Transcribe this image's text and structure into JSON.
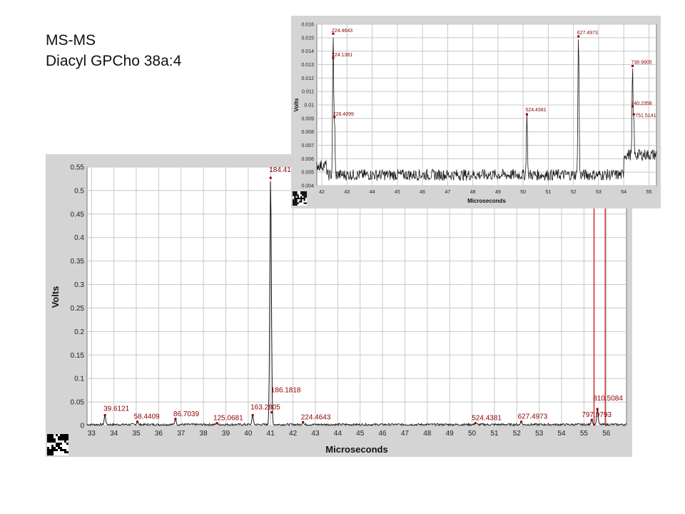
{
  "title": {
    "line1": "MS-MS",
    "line2": "Diacyl GPCho 38a:4"
  },
  "colors": {
    "background": "#ffffff",
    "panel": "#d4d4d4",
    "plot_area": "#ffffff",
    "trace": "#1a1a1a",
    "peak_marker": "#8b0000",
    "label": "#8b0000",
    "selection_line": "#cc0000",
    "grid": "#c8c8c8"
  },
  "chart_data": [
    {
      "type": "line",
      "ylabel": "Volts",
      "xlabel": "Microseconds",
      "xlim": [
        32.8,
        56.9
      ],
      "ylim": [
        0,
        0.55
      ],
      "grid": true,
      "x_ticks": [
        "33",
        "34",
        "35",
        "36",
        "37",
        "38",
        "39",
        "40",
        "41",
        "42",
        "43",
        "44",
        "45",
        "46",
        "47",
        "48",
        "49",
        "50",
        "51",
        "52",
        "53",
        "54",
        "55",
        "56"
      ],
      "y_ticks": [
        "0",
        "0.05",
        "0.1",
        "0.15",
        "0.2",
        "0.25",
        "0.3",
        "0.35",
        "0.4",
        "0.45",
        "0.5",
        "0.55"
      ],
      "peaks": [
        {
          "x": 33.6,
          "y": 0.022,
          "label": "39.6121"
        },
        {
          "x": 35.05,
          "y": 0.008,
          "label": "58.4409"
        },
        {
          "x": 36.75,
          "y": 0.014,
          "label": "86.7039"
        },
        {
          "x": 38.6,
          "y": 0.005,
          "label": "125.0681"
        },
        {
          "x": 40.2,
          "y": 0.022,
          "label": "163.2805"
        },
        {
          "x": 41.0,
          "y": 0.527,
          "label": "184.41"
        },
        {
          "x": 41.05,
          "y": 0.028,
          "label": "186.1818"
        },
        {
          "x": 42.45,
          "y": 0.007,
          "label": "224.4643"
        },
        {
          "x": 50.15,
          "y": 0.005,
          "label": "524.4381"
        },
        {
          "x": 52.2,
          "y": 0.008,
          "label": "627.4973"
        },
        {
          "x": 55.35,
          "y": 0.012,
          "label": "797.9793"
        },
        {
          "x": 55.6,
          "y": 0.035,
          "label": "810.5084"
        }
      ],
      "selection_x": [
        55.45,
        55.95
      ]
    },
    {
      "type": "line",
      "ylabel": "Volts",
      "xlabel": "Microseconds",
      "xlim": [
        41.8,
        55.3
      ],
      "ylim": [
        0.004,
        0.016
      ],
      "grid": true,
      "x_ticks": [
        "42",
        "43",
        "44",
        "45",
        "46",
        "47",
        "48",
        "49",
        "50",
        "51",
        "52",
        "53",
        "54",
        "55"
      ],
      "y_ticks": [
        "0.004",
        "0.005",
        "0.006",
        "0.007",
        "0.008",
        "0.009",
        "0.01",
        "0.011",
        "0.012",
        "0.013",
        "0.014",
        "0.015",
        "0.016"
      ],
      "peaks": [
        {
          "x": 42.45,
          "y": 0.0153,
          "label": "224.4643"
        },
        {
          "x": 42.45,
          "y": 0.0135,
          "label": "224.1381"
        },
        {
          "x": 42.5,
          "y": 0.0091,
          "label": "226.4099"
        },
        {
          "x": 50.15,
          "y": 0.0093,
          "label": "524.4381"
        },
        {
          "x": 52.2,
          "y": 0.0151,
          "label": "627.4973"
        },
        {
          "x": 54.35,
          "y": 0.0129,
          "label": "738.9905"
        },
        {
          "x": 54.35,
          "y": 0.0099,
          "label": "740.2358"
        },
        {
          "x": 54.4,
          "y": 0.0093,
          "label": "751.5141"
        }
      ]
    }
  ]
}
